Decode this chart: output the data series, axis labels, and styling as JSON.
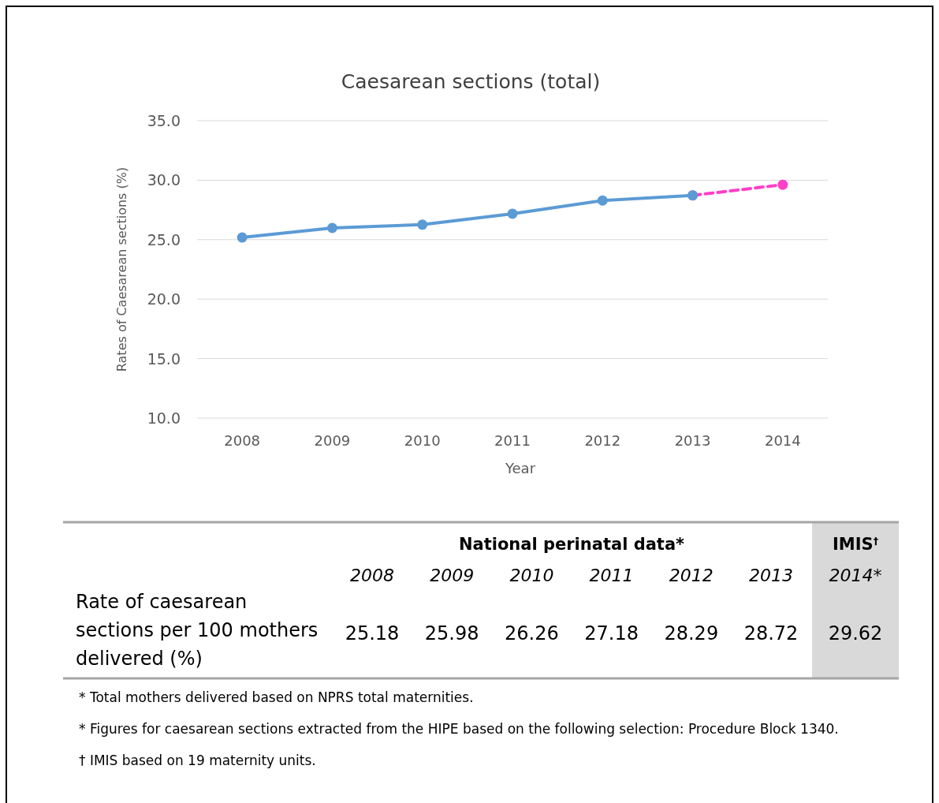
{
  "chart_data": {
    "type": "line",
    "title": "Caesarean sections (total)",
    "xlabel": "Year",
    "ylabel": "Rates of Caesarean sections (%)",
    "categories": [
      "2008",
      "2009",
      "2010",
      "2011",
      "2012",
      "2013",
      "2014"
    ],
    "series": [
      {
        "color": "#5b9bd5",
        "line_style": "solid",
        "values": [
          25.18,
          25.98,
          26.26,
          27.18,
          28.29,
          28.72,
          null
        ]
      },
      {
        "color": "#ff3fc8",
        "line_style": "dashed",
        "values": [
          null,
          null,
          null,
          null,
          null,
          28.72,
          29.62
        ]
      }
    ],
    "ylim": [
      10,
      35
    ],
    "yticks": [
      {
        "value": 10,
        "label": "10.0"
      },
      {
        "value": 15,
        "label": "15.0"
      },
      {
        "value": 20,
        "label": "20.0"
      },
      {
        "value": 25,
        "label": "25.0"
      },
      {
        "value": 30,
        "label": "30.0"
      },
      {
        "value": 35,
        "label": "35.0"
      }
    ],
    "grid": "y",
    "marker": "circle",
    "annotations": [
      "National perinatal data*",
      "IMIS$^{†}$",
      "Rate of caesarean sections per 100 mothers delivered (%)",
      "*",
      "25.18",
      "25.98",
      "26.26",
      "27.18",
      "28.29",
      "28.72",
      "29.62",
      "* Total mothers delivered based on NPRS total maternities.",
      "* Figures for caesarean sections extracted from the HIPE based on the following selection: Procedure Block 1340.",
      "† IMIS based on 19 maternity units."
    ]
  }
}
